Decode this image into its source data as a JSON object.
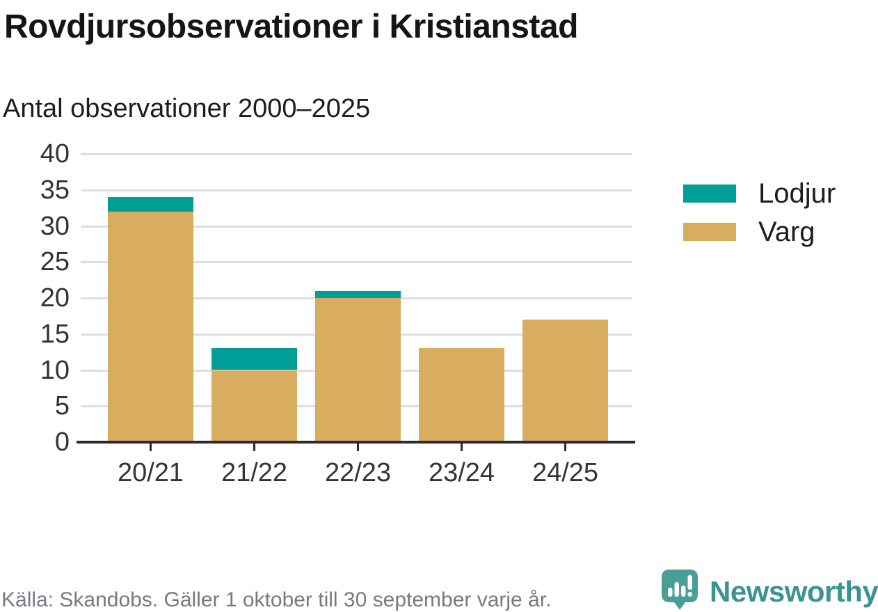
{
  "chart_data": {
    "type": "bar",
    "stacked": true,
    "title": "Rovdjursobservationer i Kristianstad",
    "subtitle": "Antal observationer 2000–2025",
    "categories": [
      "20/21",
      "21/22",
      "22/23",
      "23/24",
      "24/25"
    ],
    "series": [
      {
        "name": "Lodjur",
        "color": "#009e97",
        "values": [
          2,
          3,
          1,
          0,
          0
        ]
      },
      {
        "name": "Varg",
        "color": "#d9ad60",
        "values": [
          32,
          10,
          20,
          13,
          17
        ]
      }
    ],
    "totals": [
      34,
      13,
      21,
      13,
      17
    ],
    "ylim": [
      0,
      40
    ],
    "ytick_step": 5,
    "ytick_labels": [
      "0",
      "5",
      "10",
      "15",
      "20",
      "25",
      "30",
      "35",
      "40"
    ],
    "grid": true,
    "legend_position": "right"
  },
  "footer": {
    "source": "Källa: Skandobs. Gäller 1 oktober till 30 september varje år.",
    "brand": "Newsworthy",
    "brand_color": "#3a948f",
    "icon": "newsworthy-speech-bubble-bar-chart-icon"
  },
  "colors": {
    "grid": "#dedede",
    "axis": "#2b2b2b",
    "tick_text": "#333333",
    "footer_text": "#787a80"
  }
}
